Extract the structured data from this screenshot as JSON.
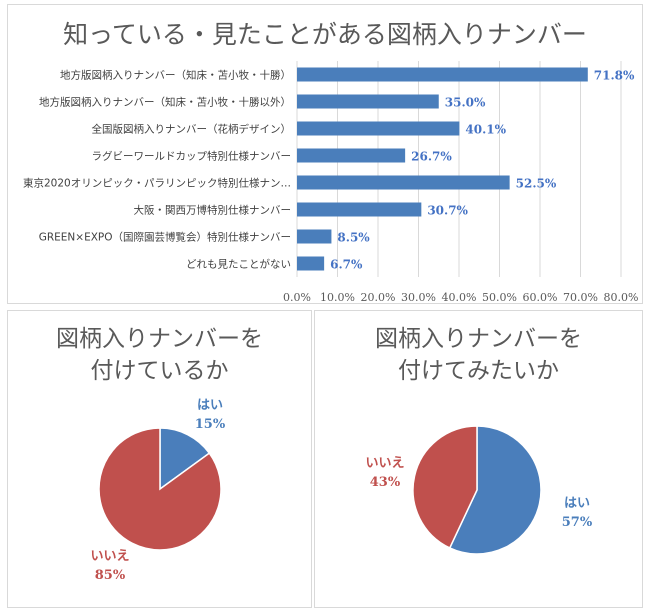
{
  "colors": {
    "blue": "#4a7ebb",
    "red": "#c0504d",
    "grid": "#d9d9d9",
    "label_blue": "#4472c4",
    "label_red": "#c0504d"
  },
  "chart_data": [
    {
      "type": "bar",
      "orientation": "horizontal",
      "title": "知っている・見たことがある図柄入りナンバー",
      "categories": [
        "地方版図柄入りナンバー（知床・苫小牧・十勝）",
        "地方版図柄入りナンバー（知床・苫小牧・十勝以外）",
        "全国版図柄入りナンバー（花柄デザイン）",
        "ラグビーワールドカップ特別仕様ナンバー",
        "東京2020オリンピック・パラリンピック特別仕様ナン…",
        "大阪・関西万博特別仕様ナンバー",
        "GREEN×EXPO（国際園芸博覧会）特別仕様ナンバー",
        "どれも見たことがない"
      ],
      "values": [
        71.8,
        35.0,
        40.1,
        26.7,
        52.5,
        30.7,
        8.5,
        6.7
      ],
      "value_labels": [
        "71.8%",
        "35.0%",
        "40.1%",
        "26.7%",
        "52.5%",
        "30.7%",
        "8.5%",
        "6.7%"
      ],
      "xlim": [
        0,
        80
      ],
      "x_ticks": [
        "0.0%",
        "10.0%",
        "20.0%",
        "30.0%",
        "40.0%",
        "50.0%",
        "60.0%",
        "70.0%",
        "80.0%"
      ],
      "grid": true,
      "color": "#4a7ebb"
    },
    {
      "type": "pie",
      "title_lines": [
        "図柄入りナンバーを",
        "付けているか"
      ],
      "slices": [
        {
          "name": "はい",
          "pct_label": "15%",
          "value": 15,
          "color": "#4a7ebb"
        },
        {
          "name": "いいえ",
          "pct_label": "85%",
          "value": 85,
          "color": "#c0504d"
        }
      ]
    },
    {
      "type": "pie",
      "title_lines": [
        "図柄入りナンバーを",
        "付けてみたいか"
      ],
      "slices": [
        {
          "name": "はい",
          "pct_label": "57%",
          "value": 57,
          "color": "#4a7ebb"
        },
        {
          "name": "いいえ",
          "pct_label": "43%",
          "value": 43,
          "color": "#c0504d"
        }
      ]
    }
  ]
}
